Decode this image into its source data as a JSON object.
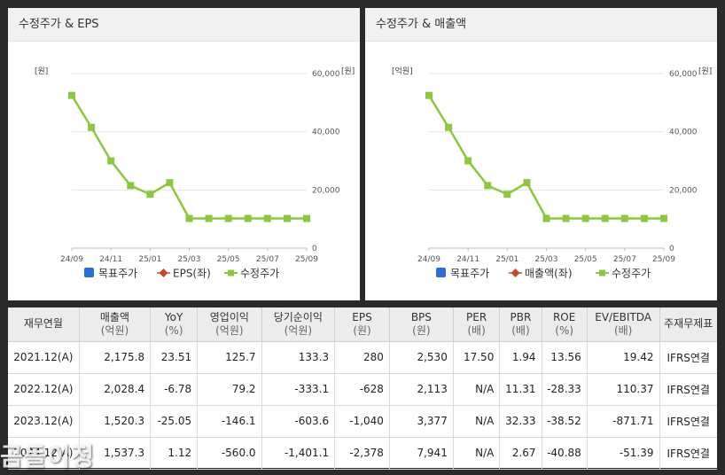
{
  "panels": [
    {
      "title": "수정주가 & EPS",
      "y_left_unit": "[원]",
      "y_right_unit": "[원]",
      "legend": [
        "목표주가",
        "EPS(좌)",
        "수정주가"
      ]
    },
    {
      "title": "수정주가 & 매출액",
      "y_left_unit": "[억원]",
      "y_right_unit": "[원]",
      "legend": [
        "목표주가",
        "매출액(좌)",
        "수정주가"
      ]
    }
  ],
  "colors": {
    "target_price": "#2a6fd6",
    "left_series": "#c8472b",
    "adjusted_price": "#8dc63f"
  },
  "chart_data": [
    {
      "type": "line",
      "x": [
        "24/09",
        "24/10",
        "24/11",
        "24/12",
        "25/01",
        "25/02",
        "25/03",
        "25/04",
        "25/05",
        "25/06",
        "25/07",
        "25/08",
        "25/09"
      ],
      "x_ticks": [
        "24/09",
        "24/11",
        "25/01",
        "25/03",
        "25/05",
        "25/07",
        "25/09"
      ],
      "y_right_ticks": [
        "0",
        "20,000",
        "40,000",
        "60,000"
      ],
      "ylim": [
        0,
        60000
      ],
      "series": [
        {
          "name": "수정주가",
          "axis": "right",
          "values": [
            52500,
            41500,
            30000,
            21500,
            18500,
            22500,
            10200,
            10200,
            10200,
            10200,
            10200,
            10200,
            10200
          ]
        }
      ]
    },
    {
      "type": "line",
      "x": [
        "24/09",
        "24/10",
        "24/11",
        "24/12",
        "25/01",
        "25/02",
        "25/03",
        "25/04",
        "25/05",
        "25/06",
        "25/07",
        "25/08",
        "25/09"
      ],
      "x_ticks": [
        "24/09",
        "24/11",
        "25/01",
        "25/03",
        "25/05",
        "25/07",
        "25/09"
      ],
      "y_right_ticks": [
        "0",
        "20,000",
        "40,000",
        "60,000"
      ],
      "ylim": [
        0,
        60000
      ],
      "series": [
        {
          "name": "수정주가",
          "axis": "right",
          "values": [
            52500,
            41500,
            30000,
            21500,
            18500,
            22500,
            10200,
            10200,
            10200,
            10200,
            10200,
            10200,
            10200
          ]
        }
      ]
    }
  ],
  "table": {
    "headers": [
      {
        "label": "재무연월",
        "sub": ""
      },
      {
        "label": "매출액",
        "sub": "(억원)"
      },
      {
        "label": "YoY",
        "sub": "(%)"
      },
      {
        "label": "영업이익",
        "sub": "(억원)"
      },
      {
        "label": "당기순이익",
        "sub": "(억원)"
      },
      {
        "label": "EPS",
        "sub": "(원)"
      },
      {
        "label": "BPS",
        "sub": "(원)"
      },
      {
        "label": "PER",
        "sub": "(배)"
      },
      {
        "label": "PBR",
        "sub": "(배)"
      },
      {
        "label": "ROE",
        "sub": "(%)"
      },
      {
        "label": "EV/EBITDA",
        "sub": "(배)"
      },
      {
        "label": "주재무제표",
        "sub": ""
      }
    ],
    "rows": [
      [
        "2021.12(A)",
        "2,175.8",
        "23.51",
        "125.7",
        "133.3",
        "280",
        "2,530",
        "17.50",
        "1.94",
        "13.56",
        "19.42",
        "IFRS연결"
      ],
      [
        "2022.12(A)",
        "2,028.4",
        "-6.78",
        "79.2",
        "-333.1",
        "-628",
        "2,113",
        "N/A",
        "11.31",
        "-28.33",
        "110.37",
        "IFRS연결"
      ],
      [
        "2023.12(A)",
        "1,520.3",
        "-25.05",
        "-146.1",
        "-603.6",
        "-1,040",
        "3,377",
        "N/A",
        "32.33",
        "-38.52",
        "-871.71",
        "IFRS연결"
      ],
      [
        "2024.12(A)",
        "1,537.3",
        "1.12",
        "-560.0",
        "-1,401.1",
        "-2,378",
        "7,941",
        "N/A",
        "2.67",
        "-40.88",
        "-51.39",
        "IFRS연결"
      ]
    ]
  },
  "watermark": "곰돌이정"
}
